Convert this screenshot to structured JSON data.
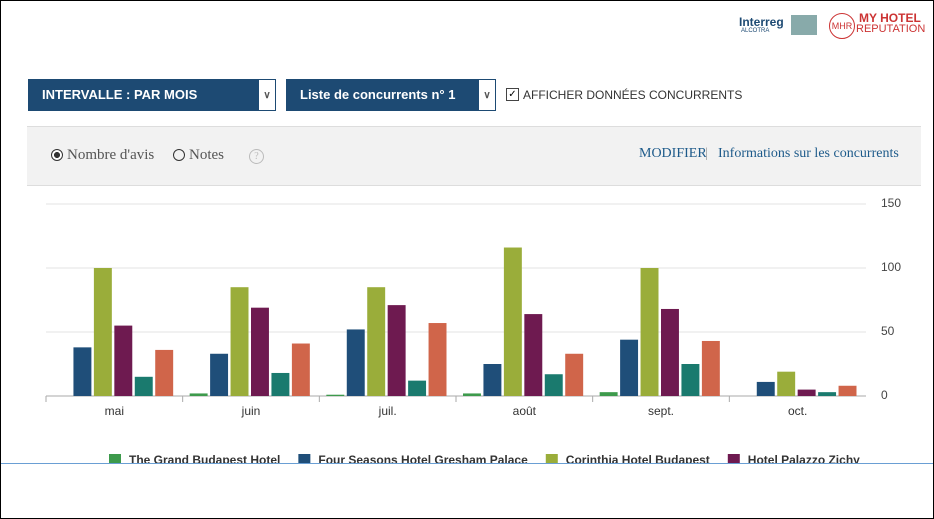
{
  "header": {
    "logo_interreg": "Interreg",
    "logo_alcotra": "ALCOTRA",
    "logo_brand_1": "MY HOTEL",
    "logo_brand_2": "REPUTATION"
  },
  "controls": {
    "interval_select": "INTERVALLE : PAR MOIS",
    "competitor_select": "Liste de concurrents n° 1",
    "show_competitors": "AFFICHER DONNÉES CONCURRENTS"
  },
  "panel": {
    "radios": [
      "Nombre d'avis",
      "Notes"
    ],
    "help": "?",
    "edit": "MODIFIER",
    "separator": "|",
    "info": "Informations sur les concurrents"
  },
  "chart_data": {
    "type": "bar",
    "categories": [
      "mai",
      "juin",
      "juil.",
      "août",
      "sept.",
      "oct."
    ],
    "series": [
      {
        "name": "The Grand Budapest Hotel",
        "color": "#3d9a4c",
        "values": [
          0,
          2,
          1,
          2,
          3,
          0
        ]
      },
      {
        "name": "Four Seasons Hotel Gresham Palace",
        "color": "#1f4e79",
        "values": [
          38,
          33,
          52,
          25,
          44,
          11
        ]
      },
      {
        "name": "Corinthia Hotel Budapest",
        "color": "#9aad3a",
        "values": [
          100,
          85,
          85,
          116,
          100,
          19
        ]
      },
      {
        "name": "Hotel Palazzo Zichy",
        "color": "#6e1a50",
        "values": [
          55,
          69,
          71,
          64,
          68,
          5
        ]
      },
      {
        "color": "#1a7a6e",
        "values": [
          15,
          18,
          12,
          17,
          25,
          3
        ]
      },
      {
        "color": "#d0654a",
        "values": [
          36,
          41,
          57,
          33,
          43,
          8
        ]
      }
    ],
    "ylim": [
      0,
      150
    ],
    "yticks": [
      0,
      50,
      100,
      150
    ],
    "grid": true
  }
}
